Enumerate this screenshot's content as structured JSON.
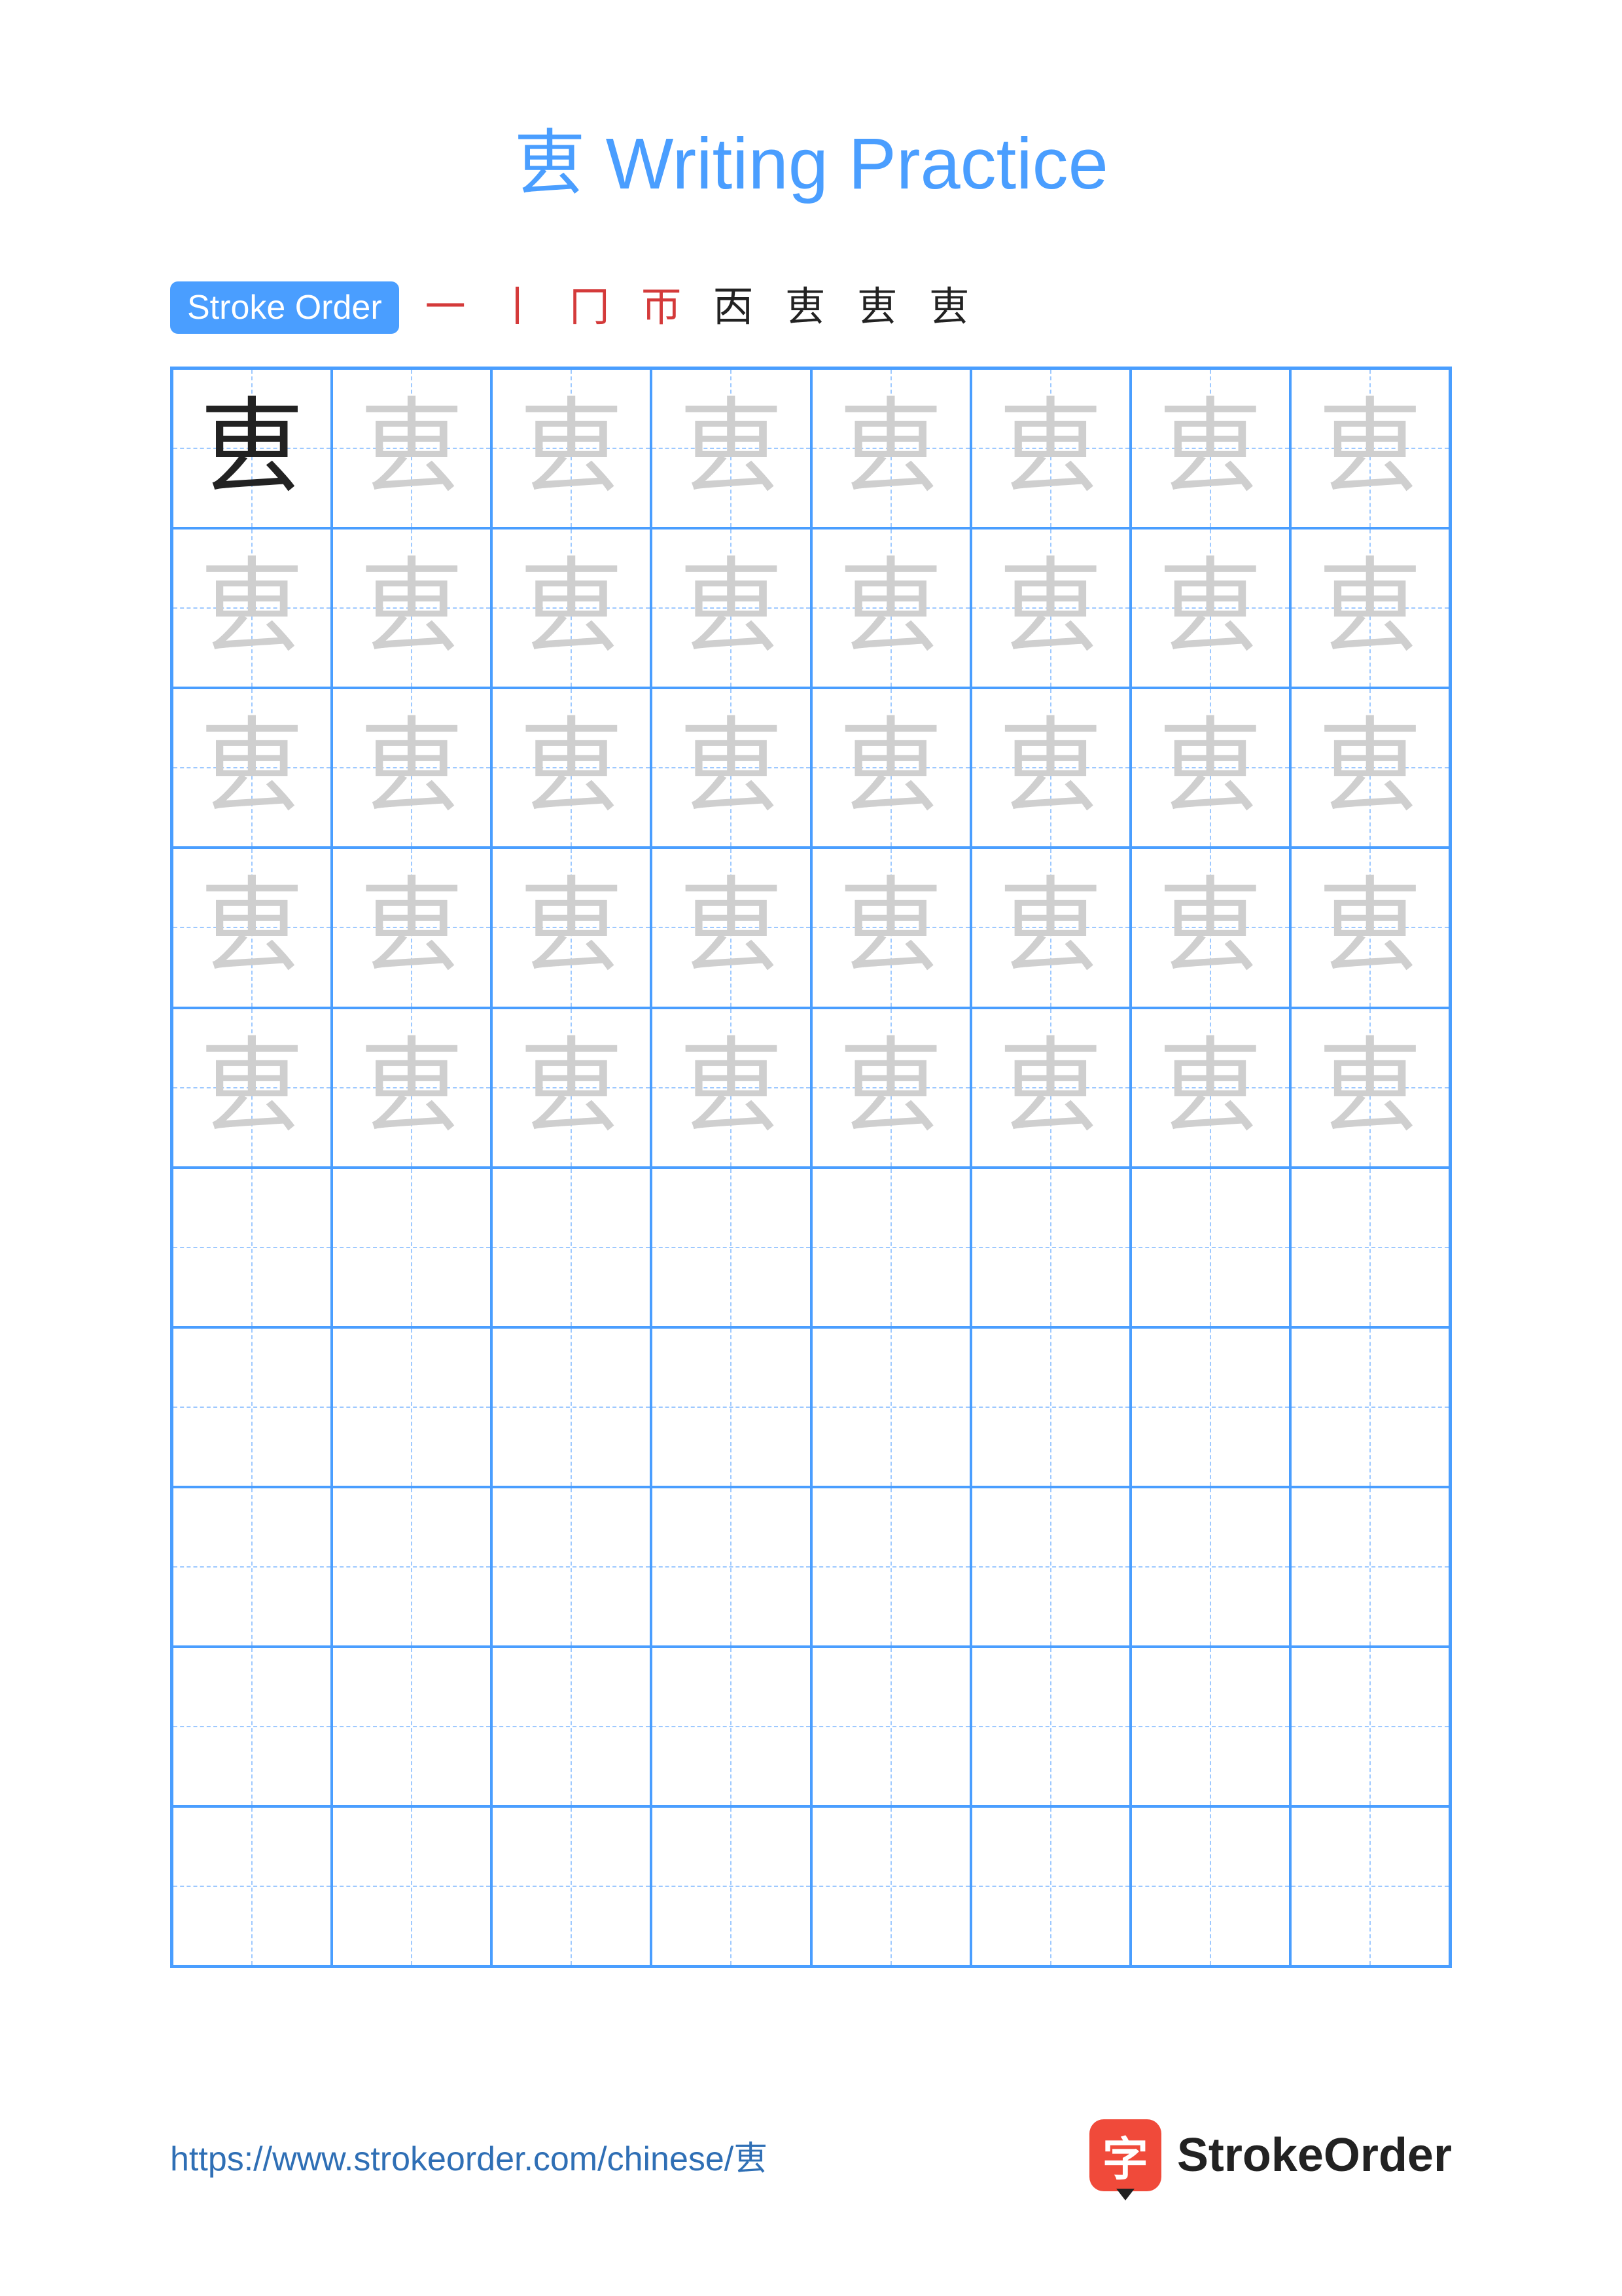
{
  "colors": {
    "accent": "#4a9eff",
    "title": "#4a9eff",
    "grid_border": "#4a9eff",
    "guide_line": "#9ec9ff",
    "char_solid": "#222222",
    "char_trace": "#cfcfcf",
    "stroke_new": "#d43a3a",
    "stroke_old": "#222222",
    "url": "#2f6fb5",
    "brand_icon_bg": "#f04a3a",
    "brand_text": "#222222"
  },
  "title": {
    "character": "叀",
    "suffix": " Writing Practice"
  },
  "stroke_order": {
    "label": "Stroke Order",
    "count": 8,
    "steps": [
      "一",
      "丨",
      "冂",
      "帀",
      "㐁",
      "叀",
      "叀",
      "叀"
    ]
  },
  "practice_grid": {
    "rows": 10,
    "cols": 8,
    "trace_rows": 5,
    "first_cell_solid": true,
    "character": "叀"
  },
  "footer": {
    "url": "https://www.strokeorder.com/chinese/叀",
    "brand_icon_char": "字",
    "brand_text": "StrokeOrder"
  }
}
